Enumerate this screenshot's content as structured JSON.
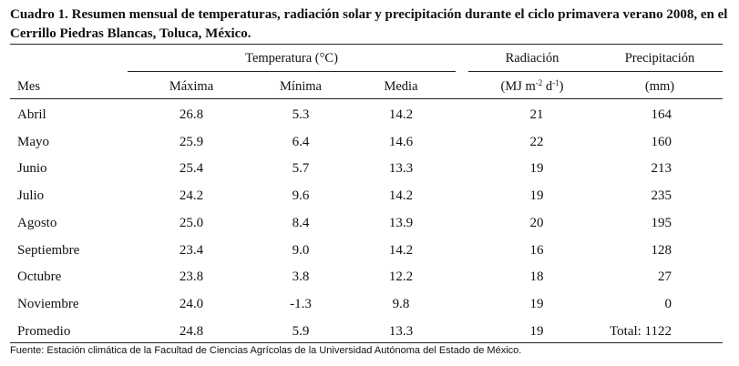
{
  "caption": {
    "line1": "Cuadro 1. Resumen mensual de temperaturas, radiación solar y precipitación durante el ciclo primavera verano 2008, en el",
    "line2": "Cerrillo Piedras Blancas, Toluca, México."
  },
  "headers": {
    "group_temperature": "Temperatura (°C)",
    "group_radiation": "Radiación",
    "group_precipitation": "Precipitación",
    "month": "Mes",
    "max": "Máxima",
    "min": "Mínima",
    "mean": "Media",
    "radiation_unit_base": "(MJ m",
    "radiation_unit_exp1": "-2",
    "radiation_unit_mid": " d",
    "radiation_unit_exp2": "-1",
    "radiation_unit_end": ")",
    "precip_unit": "(mm)"
  },
  "rows": [
    {
      "month": "Abril",
      "max": "26.8",
      "min": "5.3",
      "mean": "14.2",
      "rad": "21",
      "precip": "164"
    },
    {
      "month": "Mayo",
      "max": "25.9",
      "min": "6.4",
      "mean": "14.6",
      "rad": "22",
      "precip": "160"
    },
    {
      "month": "Junio",
      "max": "25.4",
      "min": "5.7",
      "mean": "13.3",
      "rad": "19",
      "precip": "213"
    },
    {
      "month": "Julio",
      "max": "24.2",
      "min": "9.6",
      "mean": "14.2",
      "rad": "19",
      "precip": "235"
    },
    {
      "month": "Agosto",
      "max": "25.0",
      "min": "8.4",
      "mean": "13.9",
      "rad": "20",
      "precip": "195"
    },
    {
      "month": "Septiembre",
      "max": "23.4",
      "min": "9.0",
      "mean": "14.2",
      "rad": "16",
      "precip": "128"
    },
    {
      "month": "Octubre",
      "max": "23.8",
      "min": "3.8",
      "mean": "12.2",
      "rad": "18",
      "precip": "27"
    },
    {
      "month": "Noviembre",
      "max": "24.0",
      "min": "-1.3",
      "mean": "9.8",
      "rad": "19",
      "precip": "0"
    },
    {
      "month": "Promedio",
      "max": "24.8",
      "min": "5.9",
      "mean": "13.3",
      "rad": "19",
      "precip": "Total: 1122"
    }
  ],
  "footnote": "Fuente: Estación climática de la Facultad de Ciencias Agrícolas de la Universidad Autónoma del Estado de México."
}
